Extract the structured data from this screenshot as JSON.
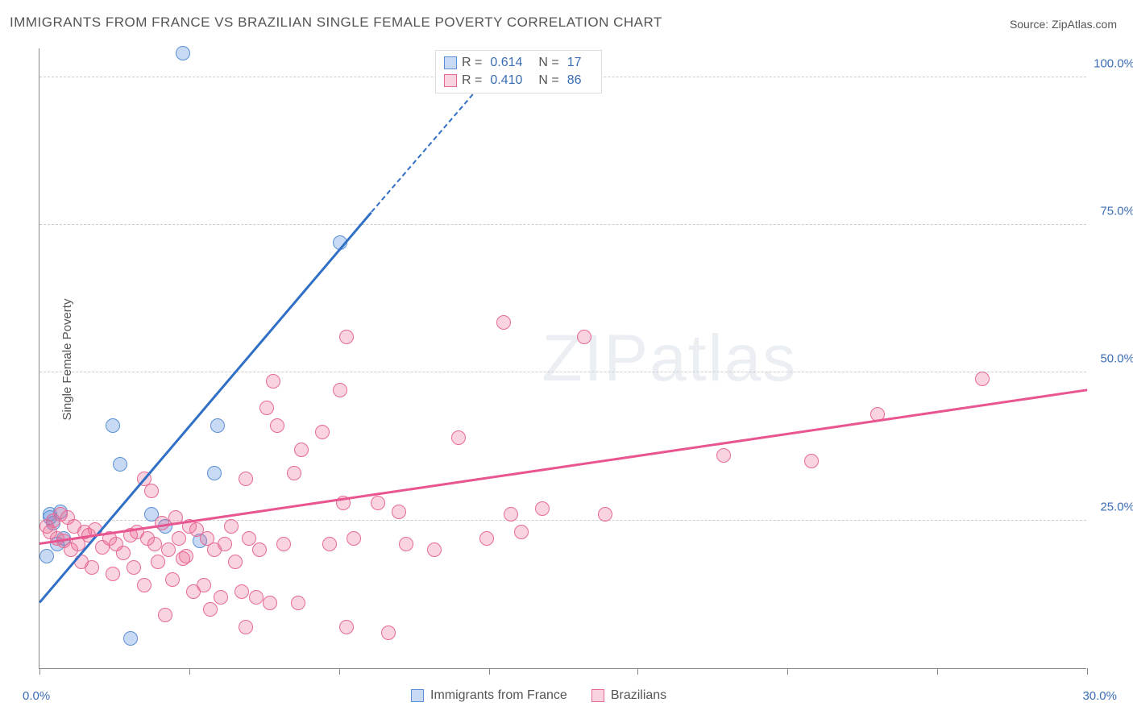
{
  "title": "IMMIGRANTS FROM FRANCE VS BRAZILIAN SINGLE FEMALE POVERTY CORRELATION CHART",
  "source_prefix": "Source: ",
  "source": "ZipAtlas.com",
  "yaxis_label": "Single Female Poverty",
  "watermark_a": "ZIP",
  "watermark_b": "atlas",
  "chart": {
    "type": "scatter",
    "xlim": [
      0,
      30
    ],
    "ylim": [
      0,
      105
    ],
    "xtick_positions_pct": [
      0,
      14.3,
      28.6,
      42.9,
      57.1,
      71.4,
      85.7,
      100
    ],
    "ylabels": [
      {
        "value": 25,
        "text": "25.0%"
      },
      {
        "value": 50,
        "text": "50.0%"
      },
      {
        "value": 75,
        "text": "75.0%"
      },
      {
        "value": 100,
        "text": "100.0%"
      }
    ],
    "xlabel_min": "0.0%",
    "xlabel_max": "30.0%",
    "background_color": "#ffffff",
    "grid_color": "#cccccc",
    "series": [
      {
        "name": "Immigrants from France",
        "color_fill": "rgba(96,150,220,0.35)",
        "color_stroke": "#5a8fd6",
        "marker_radius": 9,
        "r_value": "0.614",
        "n_value": "17",
        "trendline": {
          "x1": 0,
          "y1": 11,
          "x2": 9.5,
          "y2": 77,
          "dashed_to_x": 13,
          "dashed_to_y": 101,
          "color": "#2f6fc5",
          "width": 2.5
        },
        "points": [
          {
            "x": 4.1,
            "y": 104
          },
          {
            "x": 8.6,
            "y": 72
          },
          {
            "x": 2.1,
            "y": 41
          },
          {
            "x": 5.1,
            "y": 41
          },
          {
            "x": 2.3,
            "y": 34.5
          },
          {
            "x": 5.0,
            "y": 33
          },
          {
            "x": 0.3,
            "y": 26
          },
          {
            "x": 0.6,
            "y": 26.5
          },
          {
            "x": 3.2,
            "y": 26
          },
          {
            "x": 3.6,
            "y": 24
          },
          {
            "x": 0.4,
            "y": 24.5
          },
          {
            "x": 0.7,
            "y": 22
          },
          {
            "x": 0.5,
            "y": 21
          },
          {
            "x": 0.2,
            "y": 19
          },
          {
            "x": 4.6,
            "y": 21.5
          },
          {
            "x": 2.6,
            "y": 5
          },
          {
            "x": 0.3,
            "y": 25.5
          }
        ]
      },
      {
        "name": "Brazilians",
        "color_fill": "rgba(235,110,150,0.30)",
        "color_stroke": "#e76a96",
        "marker_radius": 9,
        "r_value": "0.410",
        "n_value": "86",
        "trendline": {
          "x1": 0,
          "y1": 21,
          "x2": 30,
          "y2": 47,
          "color": "#e85590",
          "width": 2.5
        },
        "points": [
          {
            "x": 13.3,
            "y": 58.5
          },
          {
            "x": 8.8,
            "y": 56
          },
          {
            "x": 15.6,
            "y": 56
          },
          {
            "x": 27.0,
            "y": 49
          },
          {
            "x": 8.6,
            "y": 47
          },
          {
            "x": 6.7,
            "y": 48.5
          },
          {
            "x": 6.5,
            "y": 44
          },
          {
            "x": 24.0,
            "y": 43
          },
          {
            "x": 22.1,
            "y": 35
          },
          {
            "x": 6.8,
            "y": 41
          },
          {
            "x": 8.1,
            "y": 40
          },
          {
            "x": 12.0,
            "y": 39
          },
          {
            "x": 7.5,
            "y": 37
          },
          {
            "x": 19.6,
            "y": 36
          },
          {
            "x": 3.0,
            "y": 32
          },
          {
            "x": 5.9,
            "y": 32
          },
          {
            "x": 7.3,
            "y": 33
          },
          {
            "x": 3.2,
            "y": 30
          },
          {
            "x": 8.7,
            "y": 28
          },
          {
            "x": 9.7,
            "y": 28
          },
          {
            "x": 14.4,
            "y": 27
          },
          {
            "x": 10.3,
            "y": 26.5
          },
          {
            "x": 16.2,
            "y": 26
          },
          {
            "x": 13.5,
            "y": 26
          },
          {
            "x": 3.9,
            "y": 25.5
          },
          {
            "x": 4.3,
            "y": 24
          },
          {
            "x": 5.5,
            "y": 24
          },
          {
            "x": 1.0,
            "y": 24
          },
          {
            "x": 1.3,
            "y": 23
          },
          {
            "x": 0.6,
            "y": 26
          },
          {
            "x": 0.4,
            "y": 25
          },
          {
            "x": 0.2,
            "y": 24
          },
          {
            "x": 0.3,
            "y": 23
          },
          {
            "x": 0.5,
            "y": 22
          },
          {
            "x": 0.7,
            "y": 21.5
          },
          {
            "x": 0.8,
            "y": 25.5
          },
          {
            "x": 0.9,
            "y": 20
          },
          {
            "x": 1.1,
            "y": 21
          },
          {
            "x": 1.4,
            "y": 22.5
          },
          {
            "x": 1.6,
            "y": 23.5
          },
          {
            "x": 1.8,
            "y": 20.5
          },
          {
            "x": 2.0,
            "y": 22
          },
          {
            "x": 2.2,
            "y": 21
          },
          {
            "x": 2.4,
            "y": 19.5
          },
          {
            "x": 2.6,
            "y": 22.5
          },
          {
            "x": 2.8,
            "y": 23
          },
          {
            "x": 3.1,
            "y": 22
          },
          {
            "x": 3.3,
            "y": 21
          },
          {
            "x": 3.5,
            "y": 24.5
          },
          {
            "x": 3.7,
            "y": 20
          },
          {
            "x": 4.0,
            "y": 22
          },
          {
            "x": 4.2,
            "y": 19
          },
          {
            "x": 4.5,
            "y": 23.5
          },
          {
            "x": 4.8,
            "y": 22
          },
          {
            "x": 5.0,
            "y": 20
          },
          {
            "x": 5.3,
            "y": 21
          },
          {
            "x": 5.6,
            "y": 18
          },
          {
            "x": 6.0,
            "y": 22
          },
          {
            "x": 6.3,
            "y": 20
          },
          {
            "x": 7.0,
            "y": 21
          },
          {
            "x": 8.3,
            "y": 21
          },
          {
            "x": 9.0,
            "y": 22
          },
          {
            "x": 10.5,
            "y": 21
          },
          {
            "x": 11.3,
            "y": 20
          },
          {
            "x": 12.8,
            "y": 22
          },
          {
            "x": 13.8,
            "y": 23
          },
          {
            "x": 1.2,
            "y": 18
          },
          {
            "x": 1.5,
            "y": 17
          },
          {
            "x": 2.1,
            "y": 16
          },
          {
            "x": 2.7,
            "y": 17
          },
          {
            "x": 3.0,
            "y": 14
          },
          {
            "x": 3.4,
            "y": 18
          },
          {
            "x": 3.8,
            "y": 15
          },
          {
            "x": 4.1,
            "y": 18.5
          },
          {
            "x": 4.4,
            "y": 13
          },
          {
            "x": 4.7,
            "y": 14
          },
          {
            "x": 5.2,
            "y": 12
          },
          {
            "x": 5.8,
            "y": 13
          },
          {
            "x": 6.2,
            "y": 12
          },
          {
            "x": 6.6,
            "y": 11
          },
          {
            "x": 7.4,
            "y": 11
          },
          {
            "x": 3.6,
            "y": 9
          },
          {
            "x": 5.9,
            "y": 7
          },
          {
            "x": 8.8,
            "y": 7
          },
          {
            "x": 10.0,
            "y": 6
          },
          {
            "x": 4.9,
            "y": 10
          }
        ]
      }
    ]
  },
  "legend_bottom": [
    {
      "label": "Immigrants from France",
      "fill": "rgba(96,150,220,0.35)",
      "stroke": "#5a8fd6"
    },
    {
      "label": "Brazilians",
      "fill": "rgba(235,110,150,0.30)",
      "stroke": "#e76a96"
    }
  ]
}
